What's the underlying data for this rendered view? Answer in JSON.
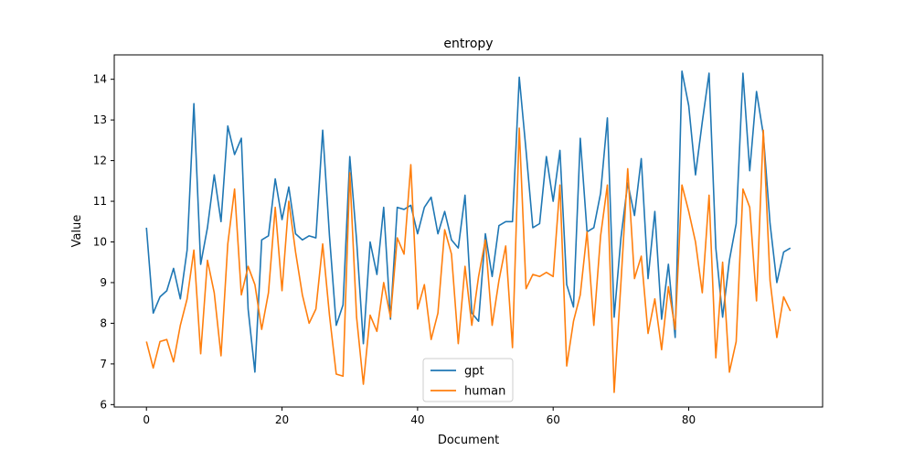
{
  "chart_data": {
    "type": "line",
    "title": "entropy",
    "xlabel": "Document",
    "ylabel": "Value",
    "xlim": [
      -4.75,
      99.75
    ],
    "ylim": [
      5.94,
      14.6
    ],
    "xticks": [
      0,
      20,
      40,
      60,
      80
    ],
    "yticks": [
      6,
      7,
      8,
      9,
      10,
      11,
      12,
      13,
      14
    ],
    "legend_position": "lower-center",
    "series": [
      {
        "name": "gpt",
        "color": "#1f77b4",
        "x": [
          0,
          1,
          2,
          3,
          4,
          5,
          6,
          7,
          8,
          9,
          10,
          11,
          12,
          13,
          14,
          15,
          16,
          17,
          18,
          19,
          20,
          21,
          22,
          23,
          24,
          25,
          26,
          27,
          28,
          29,
          30,
          31,
          32,
          33,
          34,
          35,
          36,
          37,
          38,
          39,
          40,
          41,
          42,
          43,
          44,
          45,
          46,
          47,
          48,
          49,
          50,
          51,
          52,
          53,
          54,
          55,
          56,
          57,
          58,
          59,
          60,
          61,
          62,
          63,
          64,
          65,
          66,
          67,
          68,
          69,
          70,
          71,
          72,
          73,
          74,
          75,
          76,
          77,
          78,
          79,
          80,
          81,
          82,
          83,
          84,
          85,
          86,
          87,
          88,
          89,
          90,
          91,
          92,
          93,
          94,
          95
        ],
        "values": [
          10.35,
          8.25,
          8.65,
          8.8,
          9.35,
          8.6,
          9.8,
          13.4,
          9.45,
          10.35,
          11.65,
          10.5,
          12.85,
          12.15,
          12.55,
          8.35,
          6.8,
          10.05,
          10.15,
          11.55,
          10.55,
          11.35,
          10.2,
          10.05,
          10.15,
          10.1,
          12.75,
          10.15,
          7.95,
          8.45,
          12.1,
          10.05,
          7.5,
          10.0,
          9.2,
          10.85,
          8.1,
          10.85,
          10.8,
          10.9,
          10.2,
          10.85,
          11.1,
          10.2,
          10.75,
          10.05,
          9.85,
          11.15,
          8.25,
          8.05,
          10.2,
          9.15,
          10.4,
          10.5,
          10.5,
          14.05,
          12.25,
          10.35,
          10.45,
          12.1,
          11.0,
          12.25,
          8.95,
          8.4,
          12.55,
          10.25,
          10.35,
          11.2,
          13.05,
          8.15,
          10.1,
          11.45,
          10.65,
          12.05,
          9.1,
          10.75,
          8.1,
          9.45,
          7.65,
          14.2,
          13.35,
          11.65,
          12.95,
          14.15,
          9.85,
          8.15,
          9.55,
          10.45,
          14.15,
          11.75,
          13.7,
          12.65,
          10.45,
          9.0,
          9.75,
          9.85
        ]
      },
      {
        "name": "human",
        "color": "#ff7f0e",
        "x": [
          0,
          1,
          2,
          3,
          4,
          5,
          6,
          7,
          8,
          9,
          10,
          11,
          12,
          13,
          14,
          15,
          16,
          17,
          18,
          19,
          20,
          21,
          22,
          23,
          24,
          25,
          26,
          27,
          28,
          29,
          30,
          31,
          32,
          33,
          34,
          35,
          36,
          37,
          38,
          39,
          40,
          41,
          42,
          43,
          44,
          45,
          46,
          47,
          48,
          49,
          50,
          51,
          52,
          53,
          54,
          55,
          56,
          57,
          58,
          59,
          60,
          61,
          62,
          63,
          64,
          65,
          66,
          67,
          68,
          69,
          70,
          71,
          72,
          73,
          74,
          75,
          76,
          77,
          78,
          79,
          80,
          81,
          82,
          83,
          84,
          85,
          86,
          87,
          88,
          89,
          90,
          91,
          92,
          93,
          94,
          95
        ],
        "values": [
          7.55,
          6.9,
          7.55,
          7.6,
          7.05,
          7.95,
          8.6,
          9.8,
          7.25,
          9.55,
          8.75,
          7.2,
          9.95,
          11.3,
          8.7,
          9.4,
          8.95,
          7.85,
          8.75,
          10.85,
          8.8,
          11.0,
          9.75,
          8.7,
          8.0,
          8.35,
          9.95,
          8.2,
          6.75,
          6.7,
          11.7,
          8.15,
          6.5,
          8.2,
          7.8,
          9.0,
          8.15,
          10.1,
          9.7,
          11.9,
          8.35,
          8.95,
          7.6,
          8.25,
          10.3,
          9.7,
          7.5,
          9.4,
          7.95,
          9.15,
          10.05,
          7.95,
          9.05,
          9.9,
          7.4,
          12.8,
          8.85,
          9.2,
          9.15,
          9.25,
          9.15,
          11.4,
          6.95,
          8.05,
          8.7,
          10.25,
          7.95,
          10.15,
          11.4,
          6.3,
          9.0,
          11.8,
          9.1,
          9.65,
          7.75,
          8.6,
          7.35,
          8.9,
          7.85,
          11.4,
          10.75,
          10.0,
          8.75,
          11.15,
          7.15,
          9.5,
          6.8,
          7.55,
          11.3,
          10.85,
          8.55,
          12.75,
          9.05,
          7.65,
          8.65,
          8.3
        ]
      }
    ]
  }
}
